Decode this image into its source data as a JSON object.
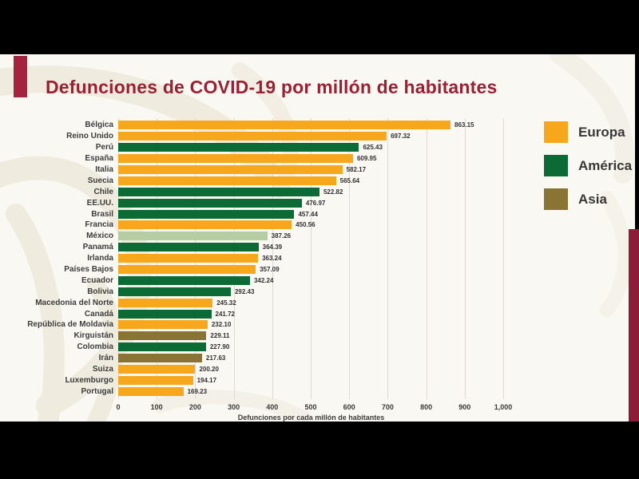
{
  "page": {
    "title": "Defunciones de COVID-19 por millón de habitantes"
  },
  "colors": {
    "letterbox": "#000000",
    "slide_background": "#FAF8F3",
    "watermark": "#E9E3D3",
    "title_maroon": "#9A2033",
    "accent_bar_red": "#A42440",
    "side_panel_maroon": "#8C1C38",
    "europa": "#F7A71C",
    "america": "#0C6B34",
    "asia": "#8A7434",
    "mexico_highlight": "#B6CCA2"
  },
  "chart_data": {
    "type": "bar",
    "orientation": "horizontal",
    "title": "Defunciones de COVID-19 por millón de habitantes",
    "xlabel": "Defunciones por cada millón de habitantes",
    "ylabel": "",
    "xlim": [
      0,
      1000
    ],
    "grid": true,
    "legend_position": "right",
    "x_ticks": [
      {
        "label": "0",
        "value": 0
      },
      {
        "label": "100",
        "value": 100
      },
      {
        "label": "200",
        "value": 200
      },
      {
        "label": "300",
        "value": 300
      },
      {
        "label": "400",
        "value": 400
      },
      {
        "label": "500",
        "value": 500
      },
      {
        "label": "600",
        "value": 600
      },
      {
        "label": "700",
        "value": 700
      },
      {
        "label": "800",
        "value": 800
      },
      {
        "label": "900",
        "value": 900
      },
      {
        "label": "1,000",
        "value": 1000
      }
    ],
    "legend": [
      {
        "label": "Europa",
        "color": "#F7A71C"
      },
      {
        "label": "América",
        "color": "#0C6B34"
      },
      {
        "label": "Asia",
        "color": "#8A7434"
      }
    ],
    "bars": [
      {
        "country": "Bélgica",
        "value": 863.15,
        "value_label": "863.15",
        "group": "Europa",
        "highlight": false
      },
      {
        "country": "Reino Unido",
        "value": 697.32,
        "value_label": "697.32",
        "group": "Europa",
        "highlight": false
      },
      {
        "country": "Perú",
        "value": 625.43,
        "value_label": "625.43",
        "group": "América",
        "highlight": false
      },
      {
        "country": "España",
        "value": 609.95,
        "value_label": "609.95",
        "group": "Europa",
        "highlight": false
      },
      {
        "country": "Italia",
        "value": 582.17,
        "value_label": "582.17",
        "group": "Europa",
        "highlight": false
      },
      {
        "country": "Suecia",
        "value": 565.64,
        "value_label": "565.64",
        "group": "Europa",
        "highlight": false
      },
      {
        "country": "Chile",
        "value": 522.82,
        "value_label": "522.82",
        "group": "América",
        "highlight": false
      },
      {
        "country": "EE.UU.",
        "value": 476.97,
        "value_label": "476.97",
        "group": "América",
        "highlight": false
      },
      {
        "country": "Brasil",
        "value": 457.44,
        "value_label": "457.44",
        "group": "América",
        "highlight": false
      },
      {
        "country": "Francia",
        "value": 450.56,
        "value_label": "450.56",
        "group": "Europa",
        "highlight": false
      },
      {
        "country": "México",
        "value": 387.26,
        "value_label": "387.26",
        "group": "América",
        "highlight": true
      },
      {
        "country": "Panamá",
        "value": 364.39,
        "value_label": "364.39",
        "group": "América",
        "highlight": false
      },
      {
        "country": "Irlanda",
        "value": 363.24,
        "value_label": "363.24",
        "group": "Europa",
        "highlight": false
      },
      {
        "country": "Países Bajos",
        "value": 357.09,
        "value_label": "357.09",
        "group": "Europa",
        "highlight": false
      },
      {
        "country": "Ecuador",
        "value": 342.24,
        "value_label": "342.24",
        "group": "América",
        "highlight": false
      },
      {
        "country": "Bolivia",
        "value": 292.43,
        "value_label": "292.43",
        "group": "América",
        "highlight": false
      },
      {
        "country": "Macedonia del Norte",
        "value": 245.32,
        "value_label": "245.32",
        "group": "Europa",
        "highlight": false
      },
      {
        "country": "Canadá",
        "value": 241.72,
        "value_label": "241.72",
        "group": "América",
        "highlight": false
      },
      {
        "country": "República de Moldavia",
        "value": 232.1,
        "value_label": "232.10",
        "group": "Europa",
        "highlight": false
      },
      {
        "country": "Kirguistán",
        "value": 229.11,
        "value_label": "229.11",
        "group": "Asia",
        "highlight": false
      },
      {
        "country": "Colombia",
        "value": 227.9,
        "value_label": "227.90",
        "group": "América",
        "highlight": false
      },
      {
        "country": "Irán",
        "value": 217.63,
        "value_label": "217.63",
        "group": "Asia",
        "highlight": false
      },
      {
        "country": "Suiza",
        "value": 200.2,
        "value_label": "200.20",
        "group": "Europa",
        "highlight": false
      },
      {
        "country": "Luxemburgo",
        "value": 194.17,
        "value_label": "194.17",
        "group": "Europa",
        "highlight": false
      },
      {
        "country": "Portugal",
        "value": 169.23,
        "value_label": "169.23",
        "group": "Europa",
        "highlight": false
      }
    ]
  }
}
